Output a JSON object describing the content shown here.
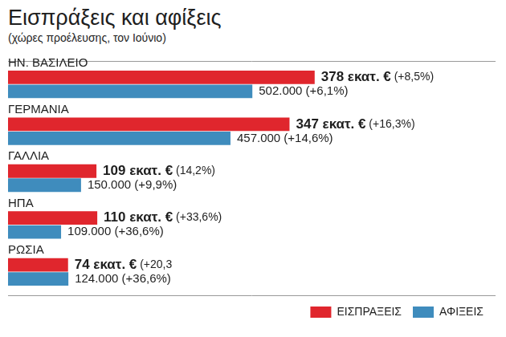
{
  "chart_data": {
    "type": "bar",
    "orientation": "horizontal",
    "title": "Εισπράξεις και αφίξεις",
    "subtitle": "(χώρες προέλευσης, τον Ιούνιο)",
    "categories": [
      "ΗΝ. ΒΑΣΙΛΕΙΟ",
      "ΓΕΡΜΑΝΙΑ",
      "ΓΑΛΛΙΑ",
      "ΗΠΑ",
      "ΡΩΣΙΑ"
    ],
    "series": [
      {
        "name": "ΕΙΣΠΡΑΞΕΙΣ",
        "color": "#e0262d",
        "values": [
          378,
          347,
          109,
          110,
          74
        ],
        "value_labels": [
          "378 εκατ. € (+8,5%)",
          "347 εκατ. € (+16,3%)",
          "109 εκατ. € (14,2%)",
          "110 εκατ. € (+33,6%)",
          "74 εκατ. € (+20,3"
        ]
      },
      {
        "name": "ΑΦΙΞΕΙΣ",
        "color": "#3f8cbd",
        "axis": "y2",
        "values": [
          502000,
          457000,
          150000,
          109000,
          124000
        ],
        "value_labels": [
          "502.000 (+6,1%)",
          "457.000 (+14,6%)",
          "150.000 (+9,9%)",
          "109.000 (+36,6%)",
          "124.000 (+36,6%)"
        ]
      }
    ],
    "ylim": [
      0,
      600
    ],
    "y2lim": [
      0,
      1000000
    ],
    "data_labels": true,
    "legend": "bottom-right",
    "grid": false
  }
}
